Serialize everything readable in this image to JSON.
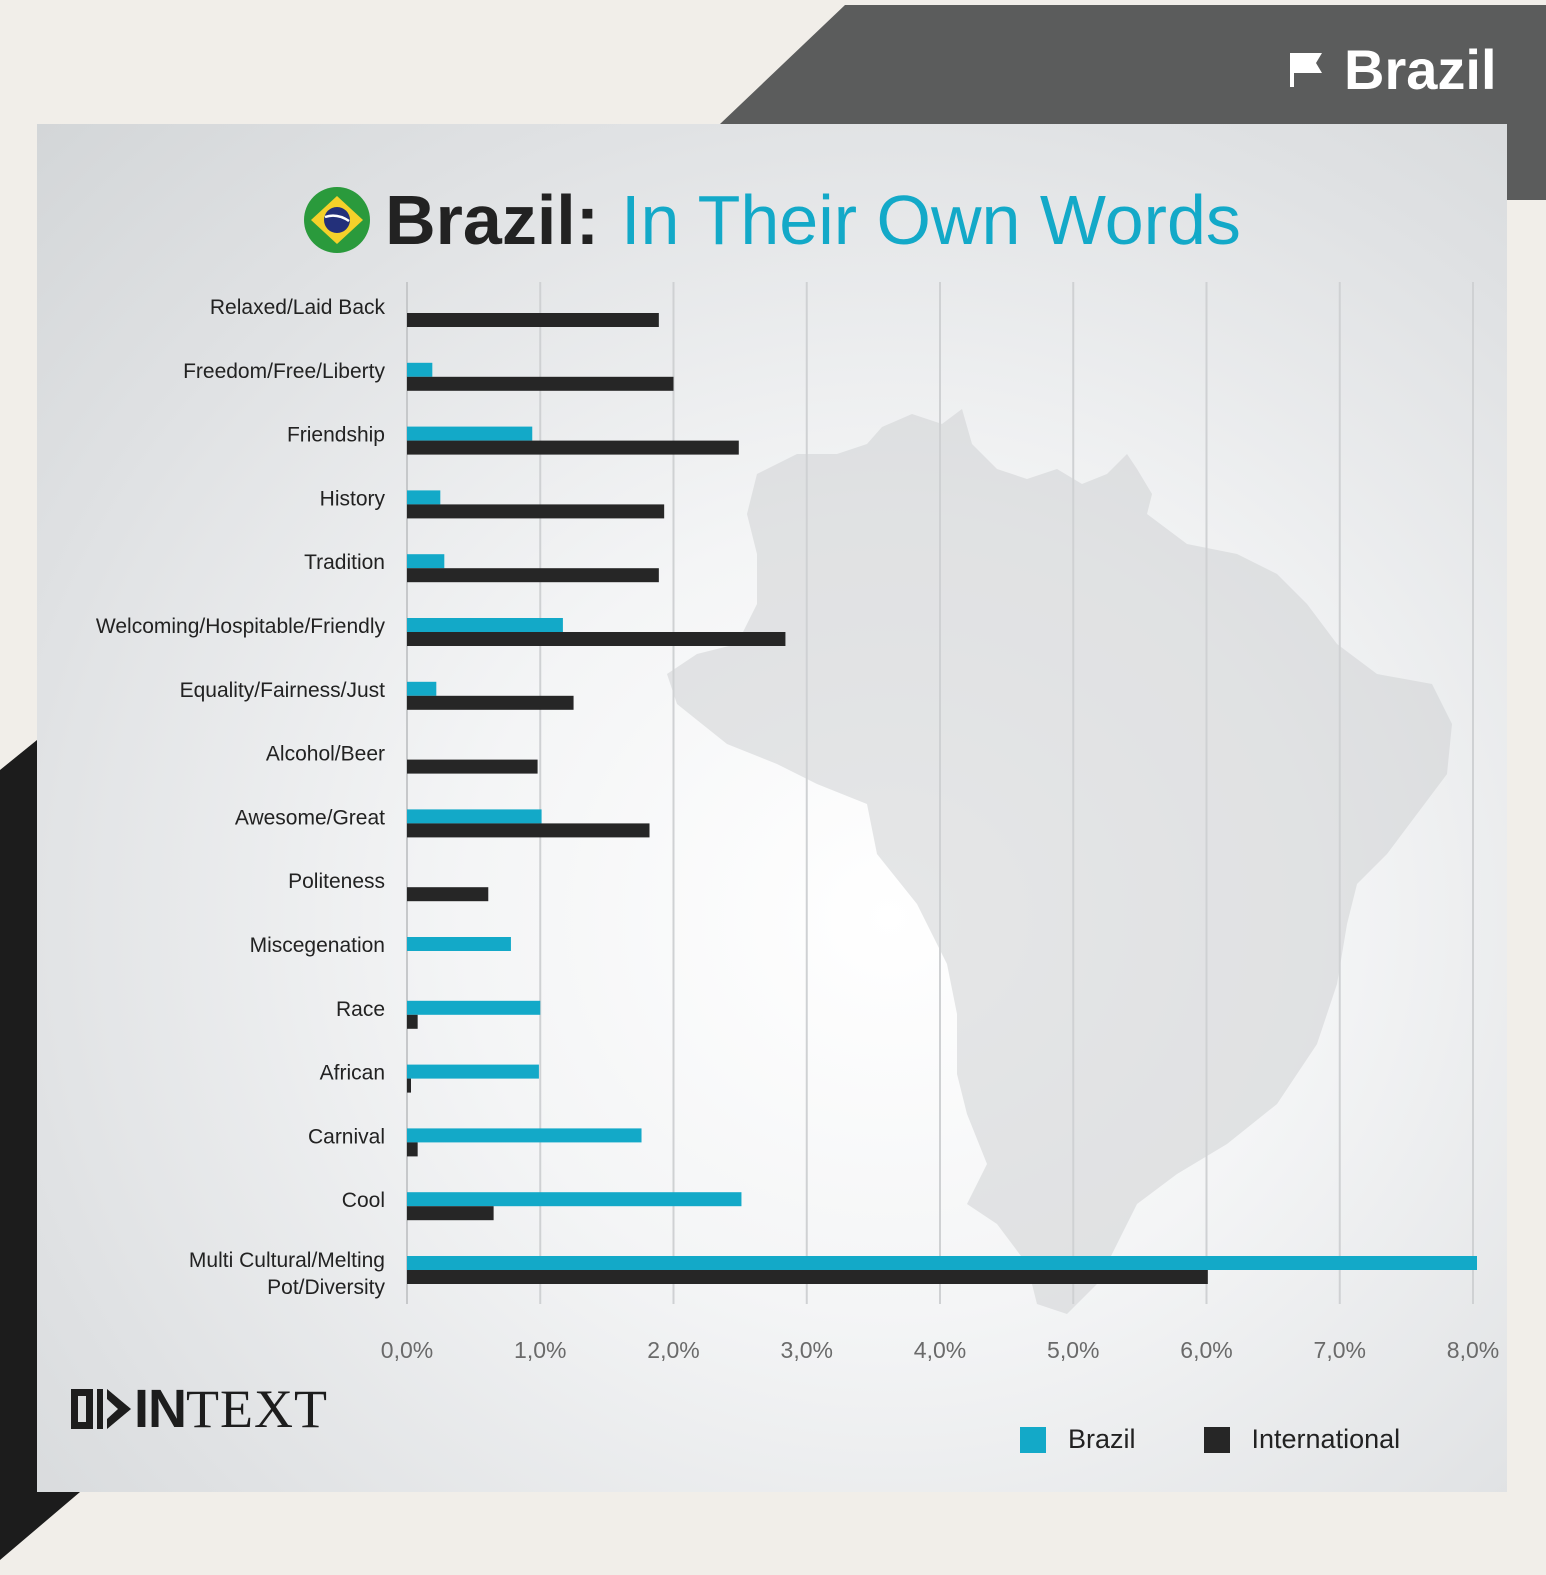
{
  "corner_label": "Brazil",
  "title": {
    "bold": "Brazil:",
    "light": "In Their Own Words"
  },
  "logo": {
    "left": "■▶IN",
    "right": "TEXT"
  },
  "colors": {
    "brazil": "#13a9c8",
    "international": "#262626",
    "dark": "#5b5c5c"
  },
  "chart_data": {
    "type": "bar",
    "orientation": "horizontal",
    "categories": [
      "Relaxed/Laid Back",
      "Freedom/Free/Liberty",
      "Friendship",
      "History",
      "Tradition",
      "Welcoming/Hospitable/Friendly",
      "Equality/Fairness/Just",
      "Alcohol/Beer",
      "Awesome/Great",
      "Politeness",
      "Miscegenation",
      "Race",
      "African",
      "Carnival",
      "Cool",
      "Multi Cultural/Melting Pot/Diversity"
    ],
    "series": [
      {
        "name": "Brazil",
        "color": "#13a9c8",
        "values": [
          0,
          0.19,
          0.94,
          0.25,
          0.28,
          1.17,
          0.22,
          0,
          1.01,
          0,
          0.78,
          1.0,
          0.99,
          1.76,
          2.51,
          8.03
        ]
      },
      {
        "name": "International",
        "color": "#262626",
        "values": [
          1.89,
          2.0,
          2.49,
          1.93,
          1.89,
          2.84,
          1.25,
          0.98,
          1.82,
          0.61,
          0,
          0.08,
          0.03,
          0.08,
          0.65,
          6.01
        ]
      }
    ],
    "xlim": [
      0,
      8
    ],
    "xticks": [
      "0,0%",
      "1,0%",
      "2,0%",
      "3,0%",
      "4,0%",
      "5,0%",
      "6,0%",
      "7,0%",
      "8,0%"
    ],
    "grid": true,
    "legend": "bottom-right"
  }
}
